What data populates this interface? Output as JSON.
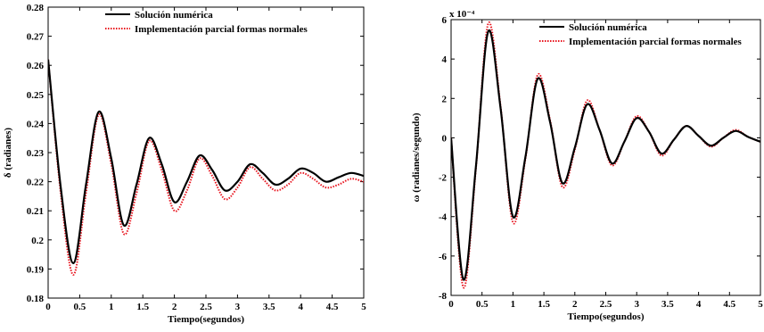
{
  "chart_data": [
    {
      "type": "line",
      "xlabel": "Tiempo(segundos)",
      "ylabel": "δ (radianes)",
      "xlim": [
        0,
        5
      ],
      "ylim": [
        0.18,
        0.28
      ],
      "xticks": [
        "0",
        "0.5",
        "1",
        "1.5",
        "2",
        "2.5",
        "3",
        "3.5",
        "4",
        "4.5",
        "5"
      ],
      "yticks": [
        "0.18",
        "0.19",
        "0.2",
        "0.21",
        "0.22",
        "0.23",
        "0.24",
        "0.25",
        "0.26",
        "0.27",
        "0.28"
      ],
      "exponent_label": "",
      "legend_position": "top-right",
      "grid": false,
      "series": [
        {
          "name": "Solución numérica",
          "color": "#000000",
          "style": "solid",
          "x": [
            0,
            0.2,
            0.4,
            0.6,
            0.8,
            1.0,
            1.2,
            1.4,
            1.6,
            1.8,
            2.0,
            2.2,
            2.4,
            2.6,
            2.8,
            3.0,
            3.2,
            3.4,
            3.6,
            3.8,
            4.0,
            4.2,
            4.4,
            4.6,
            4.8,
            5.0
          ],
          "values": [
            0.262,
            0.218,
            0.192,
            0.219,
            0.244,
            0.228,
            0.205,
            0.219,
            0.235,
            0.226,
            0.213,
            0.22,
            0.229,
            0.224,
            0.217,
            0.22,
            0.226,
            0.223,
            0.219,
            0.221,
            0.2245,
            0.223,
            0.22,
            0.2215,
            0.223,
            0.222
          ]
        },
        {
          "name": "Implementación parcial formas normales",
          "color": "#e8141e",
          "style": "dotted",
          "x": [
            0,
            0.2,
            0.4,
            0.6,
            0.8,
            1.0,
            1.2,
            1.4,
            1.6,
            1.8,
            2.0,
            2.2,
            2.4,
            2.6,
            2.8,
            3.0,
            3.2,
            3.4,
            3.6,
            3.8,
            4.0,
            4.2,
            4.4,
            4.6,
            4.8,
            5.0
          ],
          "values": [
            0.262,
            0.216,
            0.188,
            0.216,
            0.243,
            0.226,
            0.202,
            0.216,
            0.234,
            0.224,
            0.21,
            0.217,
            0.228,
            0.222,
            0.214,
            0.218,
            0.225,
            0.221,
            0.217,
            0.219,
            0.223,
            0.221,
            0.218,
            0.219,
            0.221,
            0.22
          ]
        }
      ]
    },
    {
      "type": "line",
      "xlabel": "Tiempo(segundos)",
      "ylabel": "ω (radianes/segundo)",
      "xlim": [
        0,
        5
      ],
      "ylim": [
        -8,
        6
      ],
      "xticks": [
        "0",
        "0.5",
        "1",
        "1.5",
        "2",
        "2.5",
        "3",
        "3.5",
        "4",
        "4.5",
        "5"
      ],
      "yticks": [
        "-8",
        "-6",
        "-4",
        "-2",
        "0",
        "2",
        "4",
        "6"
      ],
      "exponent_label": "x 10⁻⁴",
      "legend_position": "top-right",
      "grid": false,
      "series": [
        {
          "name": "Solución numérica",
          "color": "#000000",
          "style": "solid",
          "x": [
            0,
            0.2,
            0.4,
            0.6,
            0.8,
            1.0,
            1.2,
            1.4,
            1.6,
            1.8,
            2.0,
            2.2,
            2.4,
            2.6,
            2.8,
            3.0,
            3.2,
            3.4,
            3.6,
            3.8,
            4.0,
            4.2,
            4.4,
            4.6,
            4.8,
            5.0
          ],
          "values": [
            0,
            -7.2,
            -1.5,
            5.4,
            1.5,
            -4.0,
            -1.0,
            3.0,
            0.8,
            -2.3,
            -0.5,
            1.7,
            0.4,
            -1.3,
            -0.2,
            1.0,
            0.3,
            -0.8,
            -0.1,
            0.6,
            0.1,
            -0.4,
            0.0,
            0.35,
            0.05,
            -0.2
          ]
        },
        {
          "name": "Implementación parcial formas normales",
          "color": "#e8141e",
          "style": "dotted",
          "x": [
            0,
            0.2,
            0.4,
            0.6,
            0.8,
            1.0,
            1.2,
            1.4,
            1.6,
            1.8,
            2.0,
            2.2,
            2.4,
            2.6,
            2.8,
            3.0,
            3.2,
            3.4,
            3.6,
            3.8,
            4.0,
            4.2,
            4.4,
            4.6,
            4.8,
            5.0
          ],
          "values": [
            0,
            -7.6,
            -1.6,
            5.8,
            1.6,
            -4.3,
            -1.1,
            3.2,
            0.9,
            -2.5,
            -0.6,
            1.9,
            0.4,
            -1.4,
            -0.2,
            1.1,
            0.3,
            -0.9,
            -0.1,
            0.6,
            0.1,
            -0.45,
            0.0,
            0.4,
            0.05,
            -0.2
          ]
        }
      ]
    }
  ]
}
